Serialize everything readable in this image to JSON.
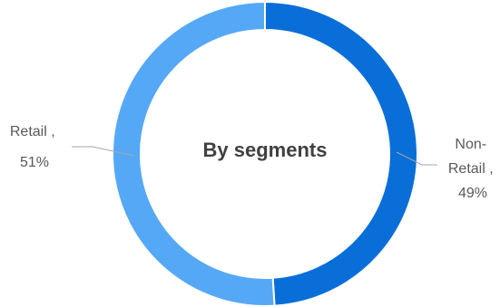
{
  "chart_data": {
    "type": "pie",
    "variant": "donut",
    "title": "By segments",
    "slices": [
      {
        "label": "Non-Retail",
        "value": 49,
        "display": "49%",
        "color": "#0A6ED8"
      },
      {
        "label": "Retail",
        "value": 51,
        "display": "51%",
        "color": "#55A8F5"
      }
    ],
    "legend": "none",
    "leader_color": "#a6a6a6"
  }
}
